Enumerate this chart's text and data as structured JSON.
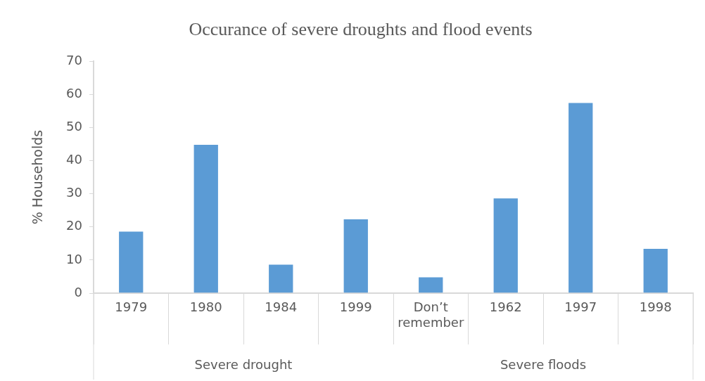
{
  "chart_data": {
    "type": "bar",
    "title": "Occurance of severe droughts and flood events",
    "ylabel": "% Households",
    "categories": [
      "1979",
      "1980",
      "1984",
      "1999",
      "Don’t remember",
      "1962",
      "1997",
      "1998"
    ],
    "values": [
      18.8,
      45.0,
      8.8,
      22.5,
      5.0,
      28.8,
      57.6,
      13.6
    ],
    "color": "#5b9bd5",
    "ylim": [
      0,
      70
    ],
    "yticks": [
      0,
      10,
      20,
      30,
      40,
      50,
      60,
      70
    ],
    "grid": false,
    "legend": false,
    "annotations": [
      "Severe drought",
      "Severe floods"
    ]
  }
}
